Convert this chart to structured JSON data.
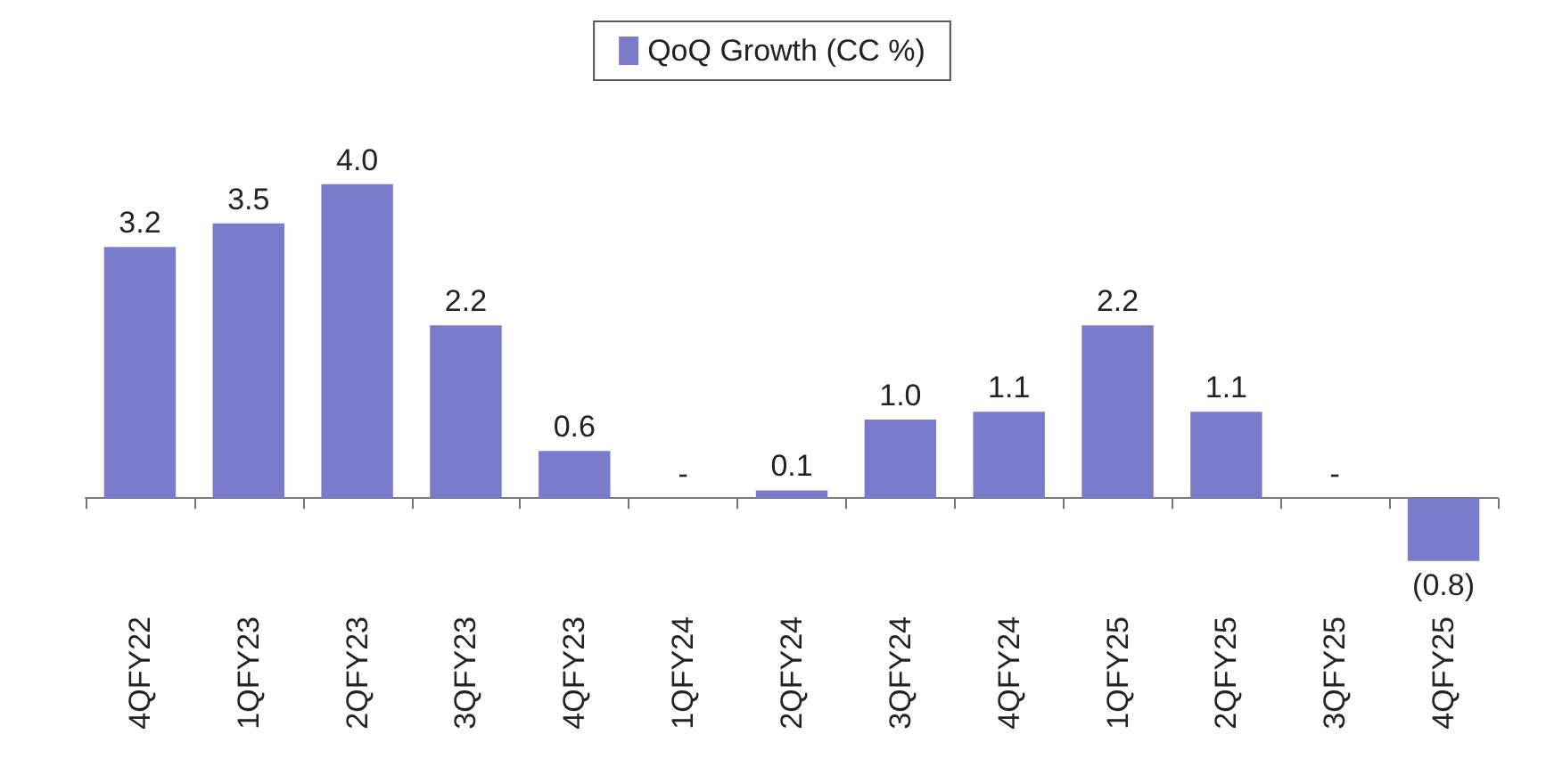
{
  "chart_data": {
    "type": "bar",
    "categories": [
      "4QFY22",
      "1QFY23",
      "2QFY23",
      "3QFY23",
      "4QFY23",
      "1QFY24",
      "2QFY24",
      "3QFY24",
      "4QFY24",
      "1QFY25",
      "2QFY25",
      "3QFY25",
      "4QFY25"
    ],
    "series": [
      {
        "name": "QoQ Growth (CC %)",
        "color": "#7b7bcc",
        "values": [
          3.2,
          3.5,
          4.0,
          2.2,
          0.6,
          0,
          0.1,
          1.0,
          1.1,
          2.2,
          1.1,
          0,
          -0.8
        ],
        "value_labels": [
          "3.2",
          "3.5",
          "4.0",
          "2.2",
          "0.6",
          "-",
          "0.1",
          "1.0",
          "1.1",
          "2.2",
          "1.1",
          "-",
          "(0.8)"
        ]
      }
    ],
    "legend": "top"
  }
}
